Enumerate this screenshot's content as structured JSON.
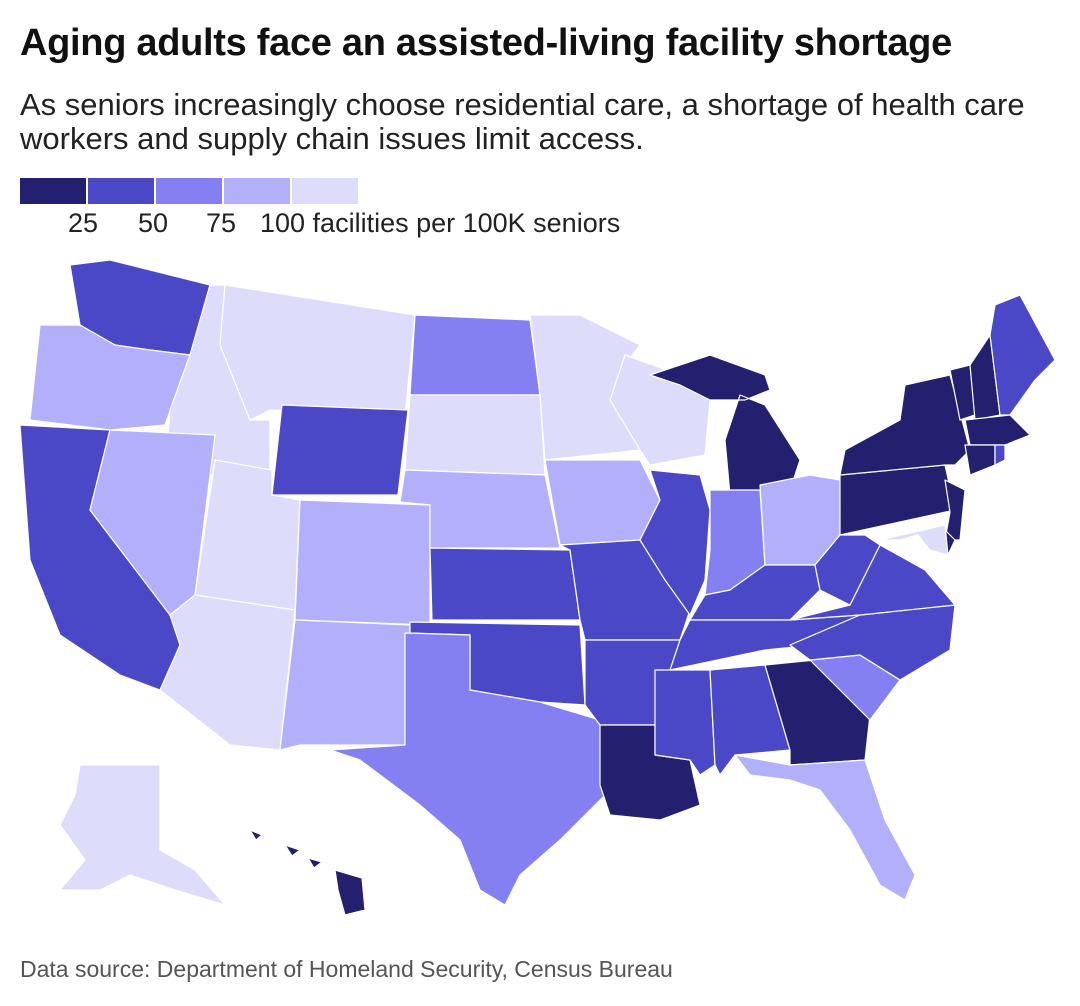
{
  "title": "Aging adults face an assisted-living facility shortage",
  "subtitle": "As seniors increasingly choose residential care, a shortage of health care workers and supply chain issues limit access.",
  "legend": {
    "colors": [
      "#23206f",
      "#4b48c8",
      "#8480f2",
      "#b2b0fb",
      "#dddcfb"
    ],
    "ticks": [
      "25",
      "50",
      "75",
      "100 facilities per 100K seniors"
    ]
  },
  "source": "Data source: Department of Homeland Security, Census Bureau",
  "map_data": {
    "type": "choropleth",
    "region": "United States",
    "metric": "facilities per 100K seniors",
    "bins": [
      {
        "range": "0-25",
        "color": "#23206f"
      },
      {
        "range": "25-50",
        "color": "#4b48c8"
      },
      {
        "range": "50-75",
        "color": "#8480f2"
      },
      {
        "range": "75-100",
        "color": "#b2b0fb"
      },
      {
        "range": "100+",
        "color": "#dddcfb"
      }
    ],
    "states": [
      {
        "code": "WA",
        "bin": 1
      },
      {
        "code": "OR",
        "bin": 3
      },
      {
        "code": "CA",
        "bin": 1
      },
      {
        "code": "ID",
        "bin": 4
      },
      {
        "code": "NV",
        "bin": 3
      },
      {
        "code": "MT",
        "bin": 4
      },
      {
        "code": "WY",
        "bin": 1
      },
      {
        "code": "UT",
        "bin": 4
      },
      {
        "code": "AZ",
        "bin": 4
      },
      {
        "code": "CO",
        "bin": 3
      },
      {
        "code": "NM",
        "bin": 3
      },
      {
        "code": "ND",
        "bin": 2
      },
      {
        "code": "SD",
        "bin": 4
      },
      {
        "code": "NE",
        "bin": 3
      },
      {
        "code": "KS",
        "bin": 1
      },
      {
        "code": "OK",
        "bin": 1
      },
      {
        "code": "TX",
        "bin": 2
      },
      {
        "code": "MN",
        "bin": 4
      },
      {
        "code": "IA",
        "bin": 3
      },
      {
        "code": "MO",
        "bin": 1
      },
      {
        "code": "AR",
        "bin": 1
      },
      {
        "code": "LA",
        "bin": 0
      },
      {
        "code": "WI",
        "bin": 4
      },
      {
        "code": "IL",
        "bin": 1
      },
      {
        "code": "MI",
        "bin": 0
      },
      {
        "code": "IN",
        "bin": 2
      },
      {
        "code": "OH",
        "bin": 3
      },
      {
        "code": "KY",
        "bin": 1
      },
      {
        "code": "TN",
        "bin": 1
      },
      {
        "code": "MS",
        "bin": 1
      },
      {
        "code": "AL",
        "bin": 1
      },
      {
        "code": "GA",
        "bin": 0
      },
      {
        "code": "FL",
        "bin": 3
      },
      {
        "code": "SC",
        "bin": 2
      },
      {
        "code": "NC",
        "bin": 1
      },
      {
        "code": "VA",
        "bin": 1
      },
      {
        "code": "WV",
        "bin": 1
      },
      {
        "code": "PA",
        "bin": 0
      },
      {
        "code": "NY",
        "bin": 0
      },
      {
        "code": "NJ",
        "bin": 0
      },
      {
        "code": "DE",
        "bin": 0
      },
      {
        "code": "MD",
        "bin": 4
      },
      {
        "code": "VT",
        "bin": 0
      },
      {
        "code": "NH",
        "bin": 0
      },
      {
        "code": "ME",
        "bin": 1
      },
      {
        "code": "MA",
        "bin": 0
      },
      {
        "code": "CT",
        "bin": 0
      },
      {
        "code": "RI",
        "bin": 1
      },
      {
        "code": "AK",
        "bin": 4
      },
      {
        "code": "HI",
        "bin": 0
      }
    ]
  }
}
